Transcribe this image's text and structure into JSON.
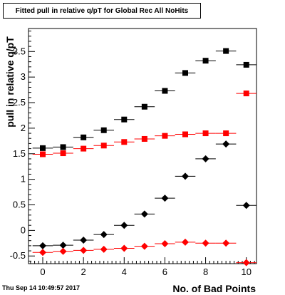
{
  "chart_data": {
    "type": "scatter",
    "title": "Fitted pull in relative q/pT for Global Rec All NoHits",
    "xlabel": "No. of Bad Points",
    "ylabel": "pull in relative q/pT",
    "xlim": [
      -0.7,
      10.5
    ],
    "ylim": [
      -0.65,
      3.95
    ],
    "xticks": [
      0,
      2,
      4,
      6,
      8,
      10
    ],
    "yticks": [
      -0.5,
      0,
      0.5,
      1,
      1.5,
      2,
      2.5,
      3,
      3.5
    ],
    "grid": false,
    "series": [
      {
        "marker": "square",
        "color": "#000000",
        "x": [
          0,
          1,
          2,
          3,
          4,
          5,
          6,
          7,
          8,
          9,
          10
        ],
        "y": [
          1.61,
          1.63,
          1.82,
          1.96,
          2.17,
          2.42,
          2.73,
          3.08,
          3.32,
          3.51,
          3.24
        ]
      },
      {
        "marker": "square",
        "color": "#ff0000",
        "x": [
          0,
          1,
          2,
          3,
          4,
          5,
          6,
          7,
          8,
          9,
          10
        ],
        "y": [
          1.49,
          1.51,
          1.6,
          1.66,
          1.73,
          1.79,
          1.85,
          1.88,
          1.9,
          1.9,
          2.68
        ]
      },
      {
        "marker": "diamond",
        "color": "#000000",
        "x": [
          0,
          1,
          2,
          3,
          4,
          5,
          6,
          7,
          8,
          9,
          10
        ],
        "y": [
          -0.3,
          -0.29,
          -0.19,
          -0.08,
          0.1,
          0.32,
          0.63,
          1.06,
          1.4,
          1.69,
          0.49
        ]
      },
      {
        "marker": "diamond",
        "color": "#ff0000",
        "x": [
          0,
          1,
          2,
          3,
          4,
          5,
          6,
          7,
          8,
          9,
          10
        ],
        "y": [
          -0.43,
          -0.41,
          -0.39,
          -0.37,
          -0.35,
          -0.31,
          -0.26,
          -0.23,
          -0.25,
          -0.25,
          -0.63
        ]
      }
    ]
  },
  "footer": {
    "date": "Thu Sep 14 10:49:57 2017"
  }
}
